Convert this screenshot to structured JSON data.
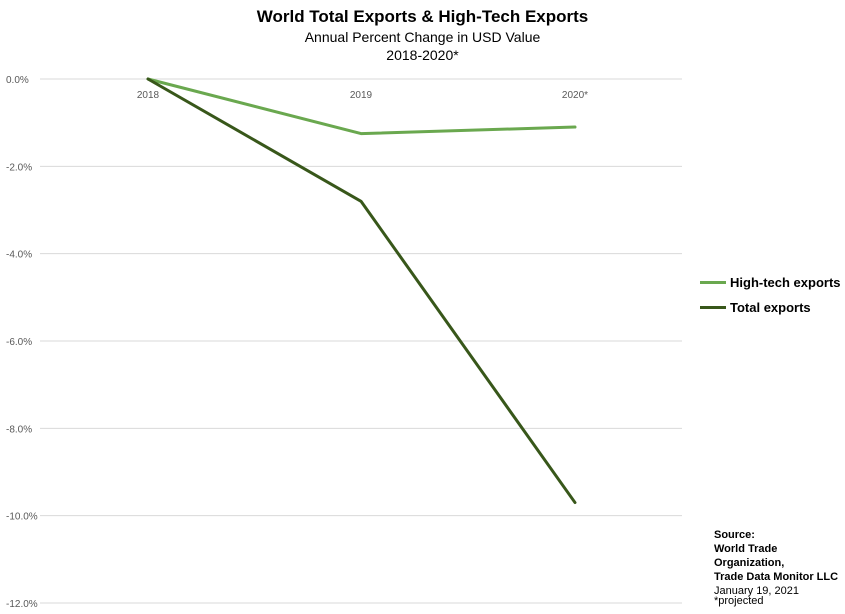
{
  "chart_data": {
    "type": "line",
    "title": "World Total Exports & High-Tech Exports",
    "subtitle": "Annual Percent Change in USD Value",
    "period": "2018-2020*",
    "categories": [
      "2018",
      "2019",
      "2020*"
    ],
    "xlabel": "",
    "ylabel": "",
    "ylim": [
      -12,
      0
    ],
    "yticks": [
      "0.0%",
      "-2.0%",
      "-4.0%",
      "-6.0%",
      "-8.0%",
      "-10.0%",
      "-12.0%"
    ],
    "ytick_values": [
      0,
      -2,
      -4,
      -6,
      -8,
      -10,
      -12
    ],
    "grid": true,
    "legend_position": "right",
    "series": [
      {
        "name": "High-tech exports",
        "values": [
          0,
          -1.25,
          -1.1
        ],
        "color": "#6aa84f"
      },
      {
        "name": "Total exports",
        "values": [
          0,
          -2.8,
          -9.7
        ],
        "color": "#38571a"
      }
    ]
  },
  "source": {
    "heading": "Source:",
    "line1": "World Trade Organization,",
    "line2": "Trade Data Monitor LLC",
    "date": "January 19, 2021"
  },
  "footnote": "*projected",
  "colors": {
    "gridline": "#d9d9d9",
    "axis_text": "#595959"
  }
}
